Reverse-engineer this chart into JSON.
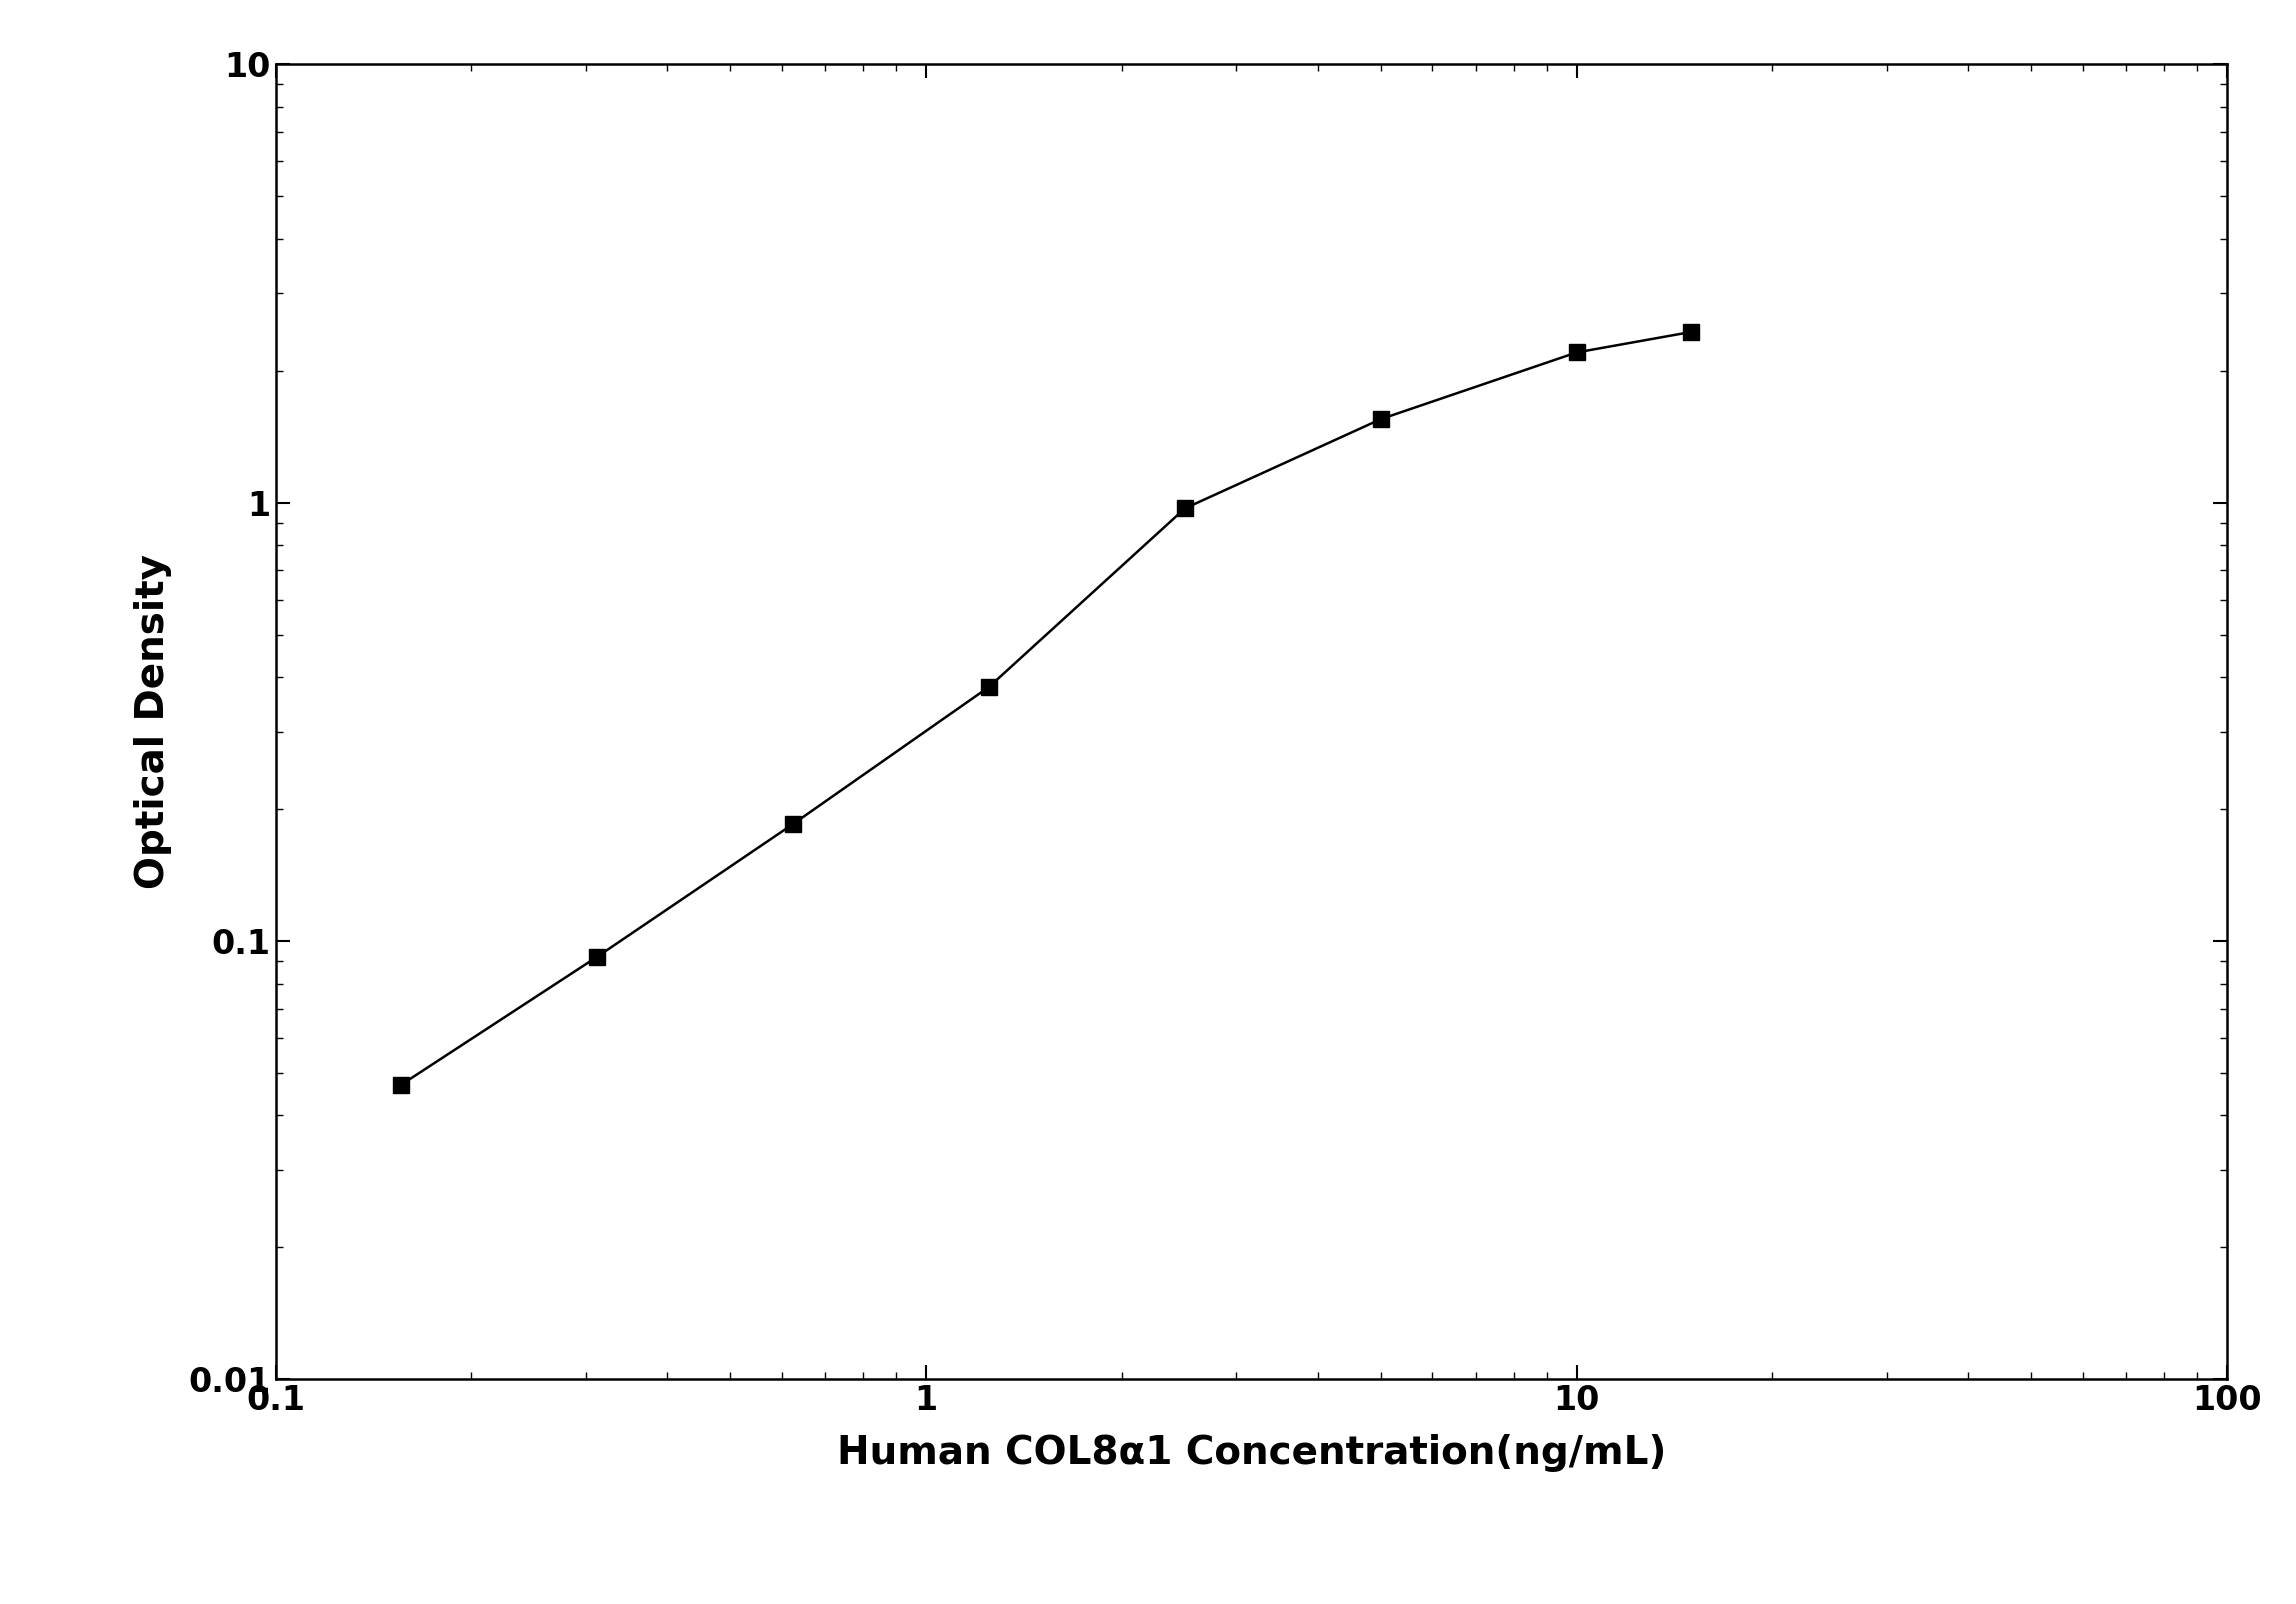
{
  "x": [
    0.156,
    0.312,
    0.625,
    1.25,
    2.5,
    5.0,
    10.0,
    15.0
  ],
  "y": [
    0.047,
    0.092,
    0.185,
    0.38,
    0.97,
    1.55,
    2.2,
    2.45
  ],
  "xlim": [
    0.1,
    100
  ],
  "ylim": [
    0.01,
    10
  ],
  "xlabel": "Human COL8α1 Concentration(ng/mL)",
  "ylabel": "Optical Density",
  "line_color": "#000000",
  "marker": "s",
  "marker_color": "#000000",
  "marker_size": 12,
  "linewidth": 1.8,
  "xlabel_fontsize": 28,
  "ylabel_fontsize": 28,
  "tick_fontsize": 24,
  "background_color": "#ffffff",
  "xtick_labels": [
    "0.1",
    "1",
    "10",
    "100"
  ],
  "ytick_labels": [
    "0.01",
    "0.1",
    "1",
    "10"
  ],
  "xtick_values": [
    0.1,
    1,
    10,
    100
  ],
  "ytick_values": [
    0.01,
    0.1,
    1,
    10
  ]
}
